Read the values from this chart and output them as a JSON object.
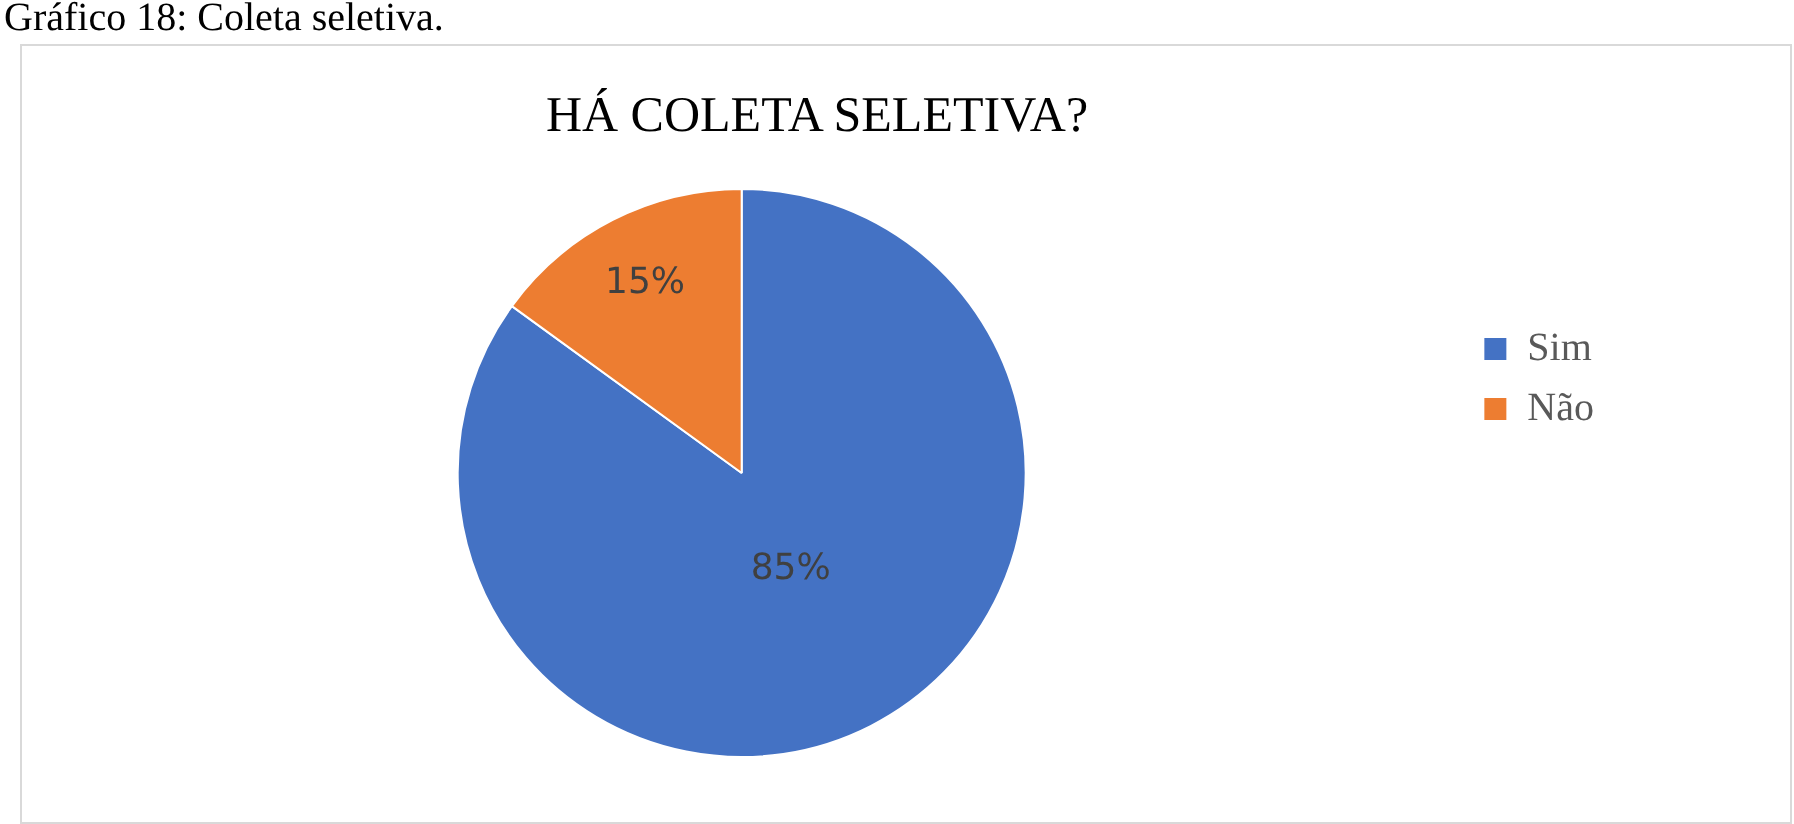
{
  "chart_data": {
    "type": "pie",
    "title": "HÁ COLETA SELETIVA?",
    "categories": [
      "Sim",
      "Não"
    ],
    "values": [
      85,
      15
    ],
    "colors": [
      "#4472c4",
      "#ed7d31"
    ],
    "value_labels": [
      "85%",
      "15%"
    ],
    "legend": "right",
    "annotations": [
      "Gráfico 18: Coleta seletiva."
    ]
  }
}
